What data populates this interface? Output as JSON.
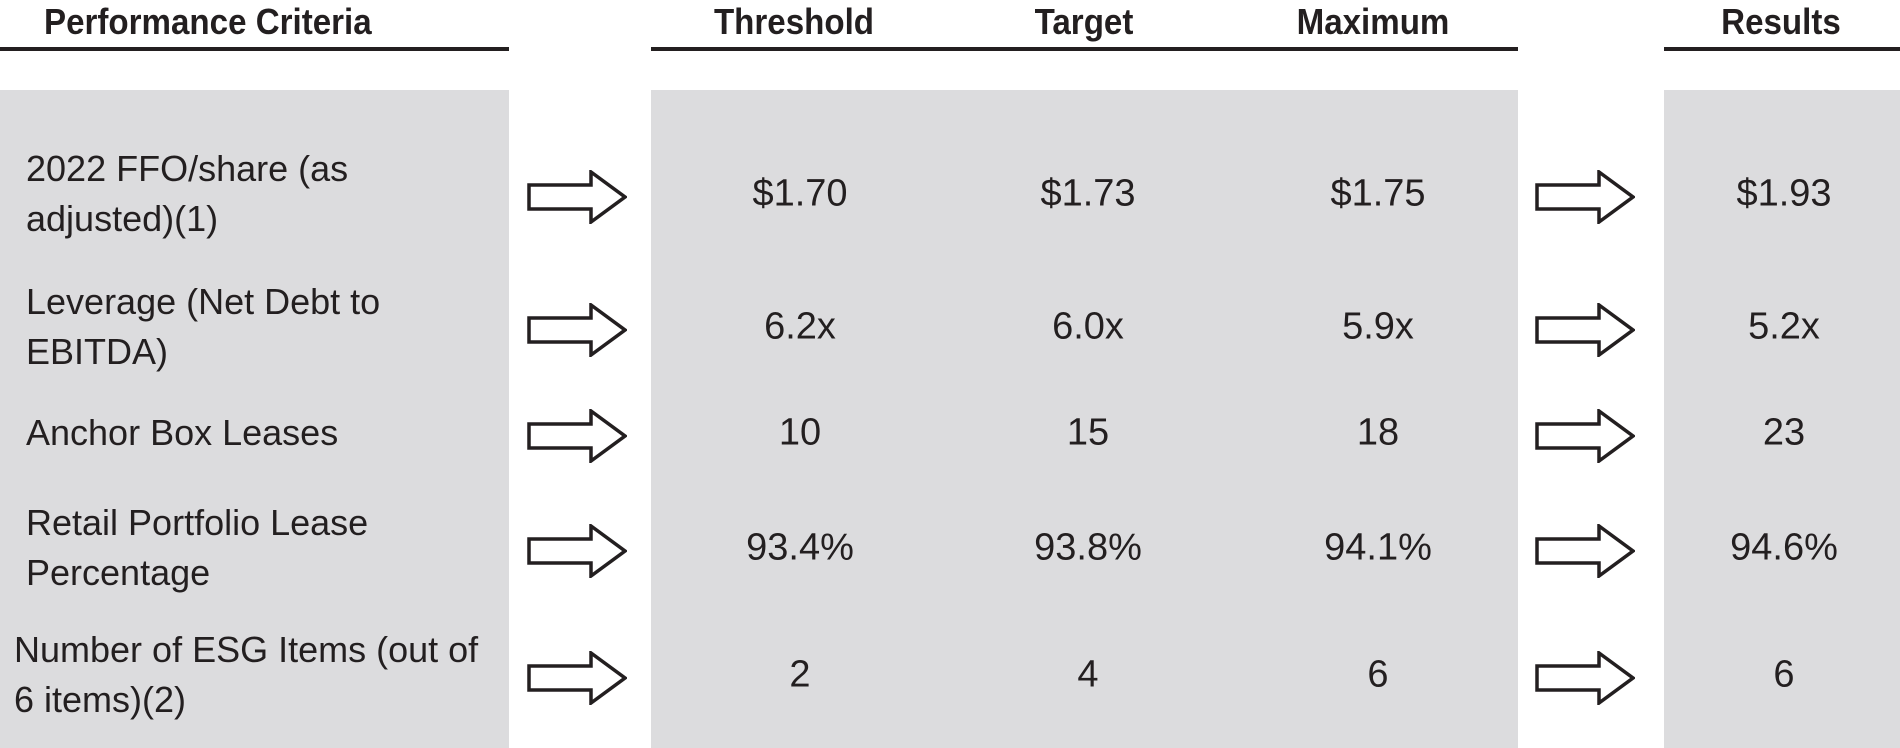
{
  "headers": {
    "criteria": "Performance Criteria",
    "threshold": "Threshold",
    "target": "Target",
    "maximum": "Maximum",
    "results": "Results"
  },
  "rows": [
    {
      "criteria": "2022 FFO/share (as adjusted)(1)",
      "threshold": "$1.70",
      "target": "$1.73",
      "maximum": "$1.75",
      "result": "$1.93"
    },
    {
      "criteria": "Leverage (Net Debt to EBITDA)",
      "threshold": "6.2x",
      "target": "6.0x",
      "maximum": "5.9x",
      "result": "5.2x"
    },
    {
      "criteria": "Anchor Box Leases",
      "threshold": "10",
      "target": "15",
      "maximum": "18",
      "result": "23"
    },
    {
      "criteria": "Retail Portfolio Lease Percentage",
      "threshold": "93.4%",
      "target": "93.8%",
      "maximum": "94.1%",
      "result": "94.6%"
    },
    {
      "criteria": "Number of ESG Items (out of 6 items)(2)",
      "threshold": "2",
      "target": "4",
      "maximum": "6",
      "result": "6"
    }
  ],
  "colors": {
    "panel": "#dcdcde",
    "text": "#231f20"
  },
  "icons": {
    "arrow": "right-arrow-outline-icon"
  }
}
